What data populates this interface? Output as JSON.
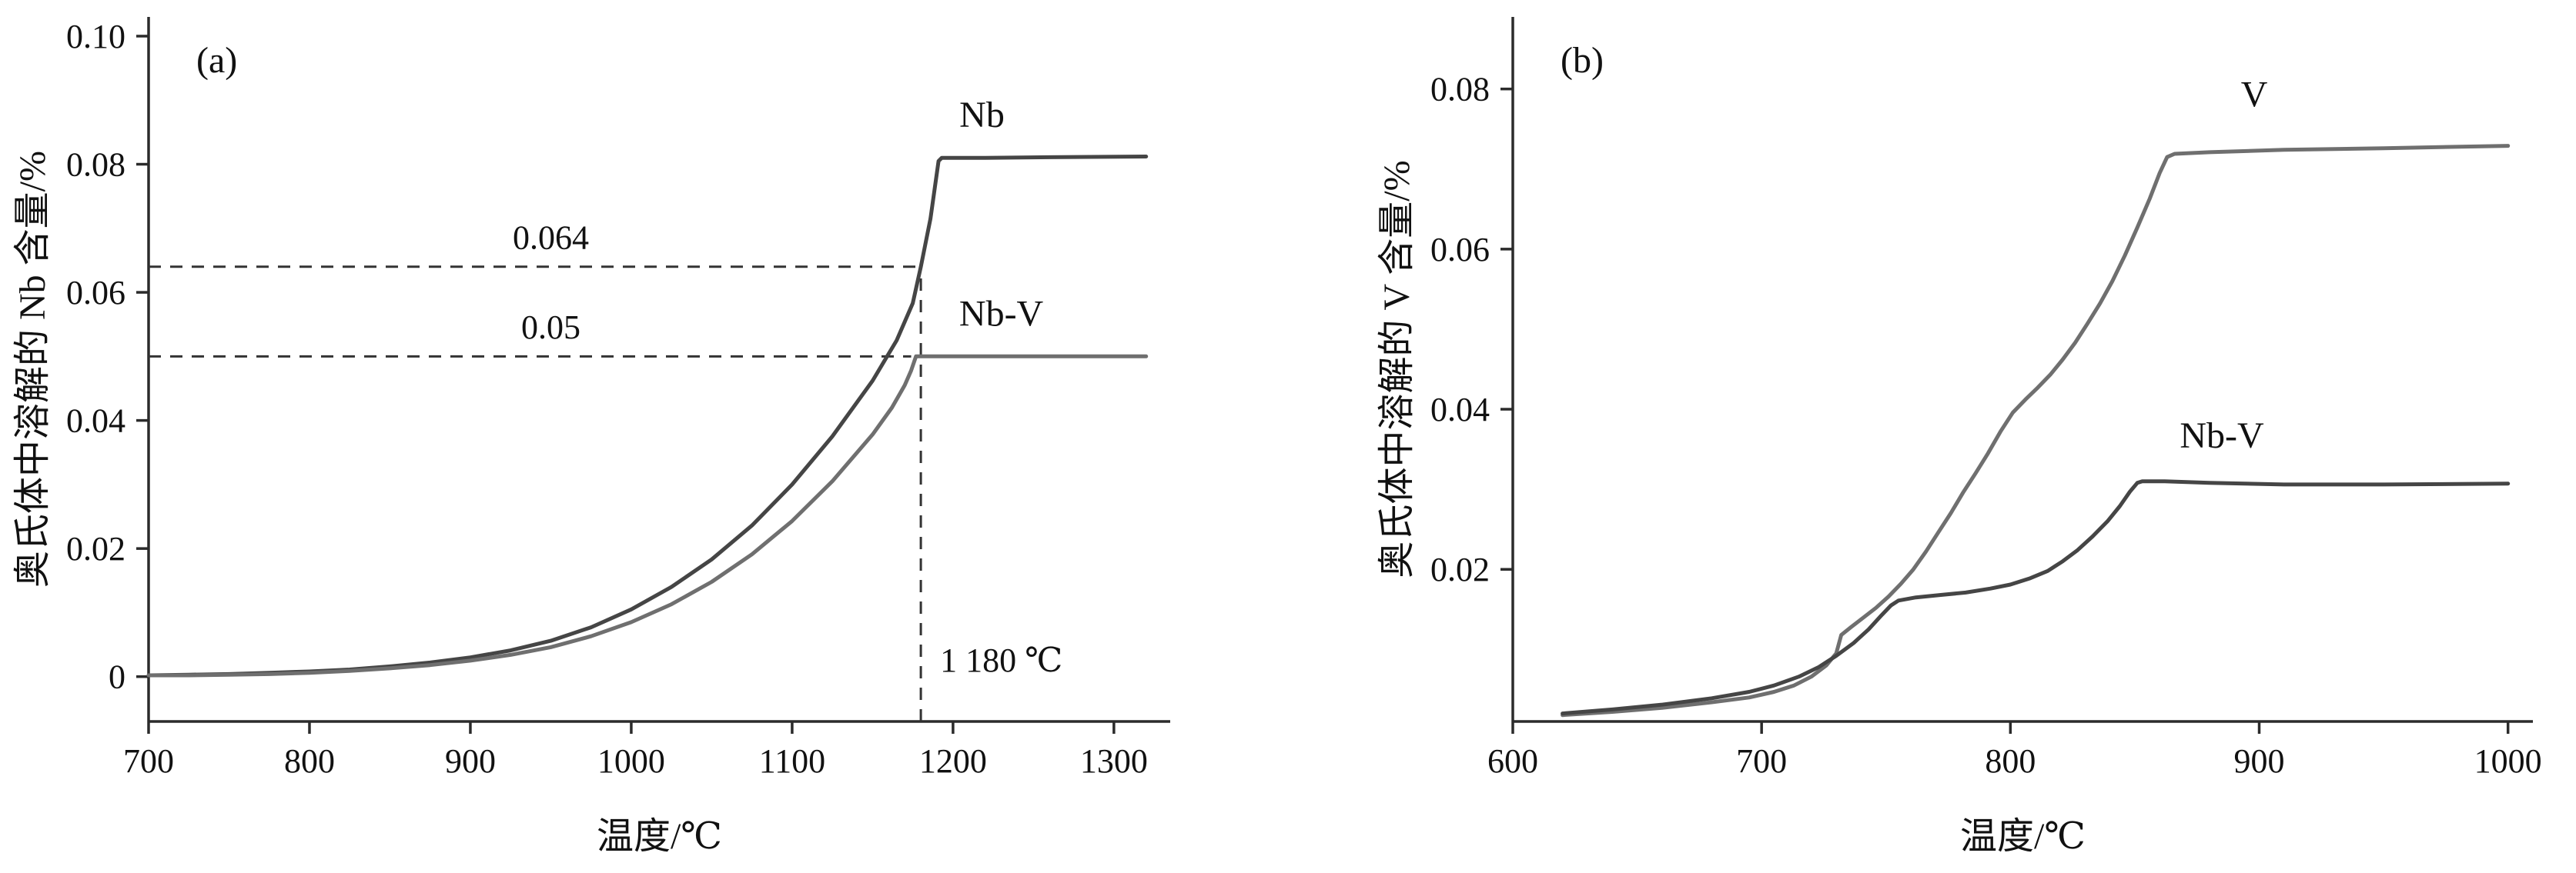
{
  "page": {
    "background": "#ffffff"
  },
  "chart_data": [
    {
      "type": "line",
      "panel_label": "(a)",
      "xlabel": "温度/℃",
      "ylabel": "奥氏体中溶解的 Nb 含量/%",
      "xlim": [
        700,
        1335
      ],
      "ylim": [
        -0.007,
        0.103
      ],
      "xticks": [
        700,
        800,
        900,
        1000,
        1100,
        1200,
        1300
      ],
      "yticks": [
        0,
        0.02,
        0.04,
        0.06,
        0.08,
        0.1
      ],
      "ytick_labels": [
        "0",
        "0.02",
        "0.04",
        "0.06",
        "0.08",
        "0.10"
      ],
      "grid": false,
      "legend": "inline-curve-labels",
      "axis_color": "#2b2b2b",
      "series": [
        {
          "name": "Nb",
          "color": "#454545",
          "label_pos": [
            1218,
            0.0858
          ],
          "points": [
            [
              700,
              0.0002
            ],
            [
              725,
              0.0003
            ],
            [
              750,
              0.0004
            ],
            [
              775,
              0.0006
            ],
            [
              800,
              0.0008
            ],
            [
              825,
              0.0011
            ],
            [
              850,
              0.0016
            ],
            [
              875,
              0.0022
            ],
            [
              900,
              0.003
            ],
            [
              925,
              0.0041
            ],
            [
              950,
              0.0056
            ],
            [
              975,
              0.0077
            ],
            [
              1000,
              0.0105
            ],
            [
              1025,
              0.014
            ],
            [
              1050,
              0.0183
            ],
            [
              1075,
              0.0236
            ],
            [
              1100,
              0.03
            ],
            [
              1125,
              0.0375
            ],
            [
              1150,
              0.0462
            ],
            [
              1165,
              0.0525
            ],
            [
              1175,
              0.0583
            ],
            [
              1180,
              0.064
            ],
            [
              1186,
              0.0715
            ],
            [
              1191,
              0.0805
            ],
            [
              1193,
              0.081
            ],
            [
              1220,
              0.081
            ],
            [
              1260,
              0.0811
            ],
            [
              1320,
              0.0812
            ]
          ]
        },
        {
          "name": "Nb-V",
          "color": "#6f6f6f",
          "label_pos": [
            1230,
            0.0548
          ],
          "points": [
            [
              700,
              0.0002
            ],
            [
              725,
              0.0002
            ],
            [
              750,
              0.0003
            ],
            [
              775,
              0.0004
            ],
            [
              800,
              0.0006
            ],
            [
              825,
              0.0009
            ],
            [
              850,
              0.0013
            ],
            [
              875,
              0.0018
            ],
            [
              900,
              0.0025
            ],
            [
              925,
              0.0034
            ],
            [
              950,
              0.0046
            ],
            [
              975,
              0.0063
            ],
            [
              1000,
              0.0085
            ],
            [
              1025,
              0.0113
            ],
            [
              1050,
              0.0148
            ],
            [
              1075,
              0.0191
            ],
            [
              1100,
              0.0243
            ],
            [
              1125,
              0.0305
            ],
            [
              1150,
              0.0378
            ],
            [
              1162,
              0.042
            ],
            [
              1170,
              0.0455
            ],
            [
              1174,
              0.0478
            ],
            [
              1177,
              0.05
            ],
            [
              1185,
              0.05
            ],
            [
              1240,
              0.05
            ],
            [
              1320,
              0.05
            ]
          ]
        }
      ],
      "annotations": [
        {
          "orient": "h",
          "y": 0.064,
          "x_from": 700,
          "x_to": 1180,
          "label": "0.064",
          "label_pos": [
            950,
            0.0668
          ],
          "anchor": "middle"
        },
        {
          "orient": "h",
          "y": 0.05,
          "x_from": 700,
          "x_to": 1174,
          "label": "0.05",
          "label_pos": [
            950,
            0.0528
          ],
          "anchor": "middle"
        },
        {
          "orient": "v",
          "x": 1180,
          "y_from": -0.007,
          "y_to": 0.064,
          "label": "1 180 ℃",
          "label_pos": [
            1192,
            0.0008
          ],
          "anchor": "start"
        }
      ]
    },
    {
      "type": "line",
      "panel_label": "(b)",
      "xlabel": "温度/℃",
      "ylabel": "奥氏体中溶解的 V 含量/%",
      "xlim": [
        600,
        1010
      ],
      "ylim": [
        0.001,
        0.089
      ],
      "xticks": [
        600,
        700,
        800,
        900,
        1000
      ],
      "yticks": [
        0.02,
        0.04,
        0.06,
        0.08
      ],
      "ytick_labels": [
        "0.02",
        "0.04",
        "0.06",
        "0.08"
      ],
      "grid": false,
      "legend": "inline-curve-labels",
      "axis_color": "#2b2b2b",
      "series": [
        {
          "name": "V",
          "color": "#6f6f6f",
          "label_pos": [
            898,
            0.0778
          ],
          "points": [
            [
              620,
              0.0018
            ],
            [
              640,
              0.0022
            ],
            [
              660,
              0.0027
            ],
            [
              680,
              0.0034
            ],
            [
              695,
              0.004
            ],
            [
              705,
              0.0047
            ],
            [
              713,
              0.0055
            ],
            [
              720,
              0.0066
            ],
            [
              726,
              0.008
            ],
            [
              730,
              0.0095
            ],
            [
              732,
              0.0118
            ],
            [
              736,
              0.0128
            ],
            [
              741,
              0.014
            ],
            [
              746,
              0.0152
            ],
            [
              751,
              0.0166
            ],
            [
              756,
              0.0182
            ],
            [
              761,
              0.02
            ],
            [
              766,
              0.0222
            ],
            [
              771,
              0.0246
            ],
            [
              776,
              0.027
            ],
            [
              781,
              0.0296
            ],
            [
              786,
              0.032
            ],
            [
              791,
              0.0345
            ],
            [
              796,
              0.0372
            ],
            [
              801,
              0.0396
            ],
            [
              806,
              0.0412
            ],
            [
              811,
              0.0427
            ],
            [
              816,
              0.0443
            ],
            [
              821,
              0.0462
            ],
            [
              826,
              0.0483
            ],
            [
              831,
              0.0507
            ],
            [
              836,
              0.0532
            ],
            [
              841,
              0.056
            ],
            [
              846,
              0.0592
            ],
            [
              851,
              0.0627
            ],
            [
              856,
              0.0663
            ],
            [
              860,
              0.0695
            ],
            [
              863,
              0.0715
            ],
            [
              866,
              0.0719
            ],
            [
              880,
              0.0721
            ],
            [
              910,
              0.0724
            ],
            [
              950,
              0.0726
            ],
            [
              1000,
              0.0729
            ]
          ]
        },
        {
          "name": "Nb-V",
          "color": "#454545",
          "label_pos": [
            885,
            0.0352
          ],
          "points": [
            [
              620,
              0.002
            ],
            [
              640,
              0.0025
            ],
            [
              660,
              0.0031
            ],
            [
              680,
              0.0039
            ],
            [
              695,
              0.0047
            ],
            [
              705,
              0.0055
            ],
            [
              715,
              0.0066
            ],
            [
              723,
              0.0078
            ],
            [
              730,
              0.0092
            ],
            [
              737,
              0.0108
            ],
            [
              743,
              0.0125
            ],
            [
              748,
              0.0142
            ],
            [
              752,
              0.0155
            ],
            [
              755,
              0.0161
            ],
            [
              762,
              0.0165
            ],
            [
              772,
              0.0168
            ],
            [
              782,
              0.0171
            ],
            [
              792,
              0.0176
            ],
            [
              800,
              0.0181
            ],
            [
              808,
              0.0189
            ],
            [
              815,
              0.0198
            ],
            [
              821,
              0.021
            ],
            [
              827,
              0.0224
            ],
            [
              833,
              0.0241
            ],
            [
              839,
              0.026
            ],
            [
              844,
              0.0279
            ],
            [
              848,
              0.0297
            ],
            [
              851,
              0.0308
            ],
            [
              853,
              0.031
            ],
            [
              862,
              0.031
            ],
            [
              880,
              0.0308
            ],
            [
              910,
              0.0306
            ],
            [
              950,
              0.0306
            ],
            [
              1000,
              0.0307
            ]
          ]
        }
      ],
      "annotations": []
    }
  ]
}
